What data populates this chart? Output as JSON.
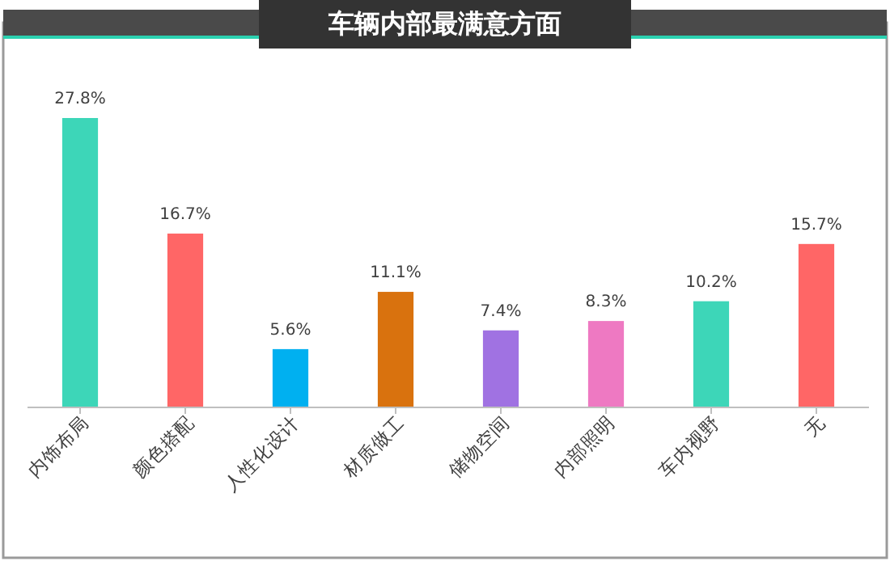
{
  "chart_data": {
    "type": "bar",
    "title": "车辆内部最满意方面",
    "categories": [
      "内饰布局",
      "颜色搭配",
      "人性化设计",
      "材质做工",
      "储物空间",
      "内部照明",
      "车内视野",
      "无"
    ],
    "values": [
      27.8,
      16.7,
      5.6,
      11.1,
      7.4,
      8.3,
      10.2,
      15.7
    ],
    "colors": [
      "#3dd6b8",
      "#ff6666",
      "#00b0f0",
      "#d9720e",
      "#a072e2",
      "#ee79c2",
      "#3dd6b8",
      "#ff6666"
    ],
    "value_labels": [
      "27.8%",
      "16.7%",
      "5.6%",
      "11.1%",
      "7.4%",
      "8.3%",
      "10.2%",
      "15.7%"
    ],
    "grid": false
  }
}
